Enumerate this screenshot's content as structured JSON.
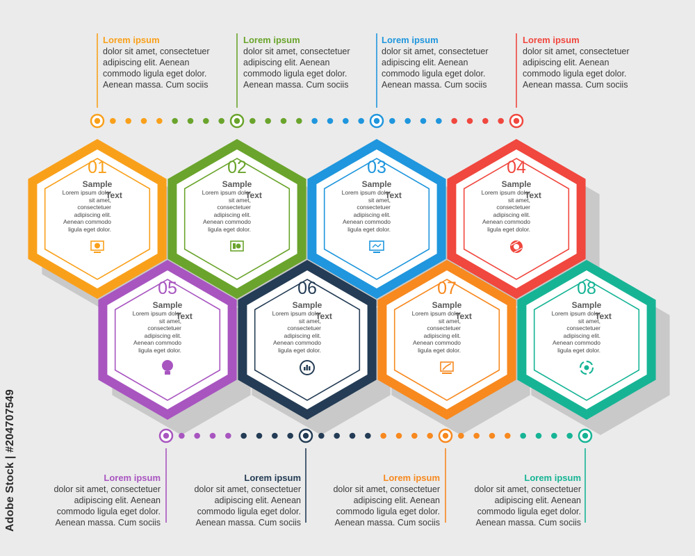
{
  "colors": {
    "background": "#ebebeb",
    "orange": "#f9a01b",
    "green": "#6aa42c",
    "blue": "#1f96dd",
    "red": "#f0473e",
    "purple": "#a855c0",
    "navy": "#243c55",
    "deep_orange": "#f7891f",
    "teal": "#16b495",
    "shadow": "#c9c9c9"
  },
  "top_callouts": [
    {
      "title": "Lorem ipsum",
      "body": "dolor sit amet, consectetuer\nadipiscing elit. Aenean\ncommodo ligula eget dolor.\nAenean massa. Cum sociis",
      "color": "#f9a01b"
    },
    {
      "title": "Lorem ipsum",
      "body": "dolor sit amet, consectetuer\nadipiscing elit. Aenean\ncommodo ligula eget dolor.\nAenean massa. Cum sociis",
      "color": "#6aa42c"
    },
    {
      "title": "Lorem ipsum",
      "body": "dolor sit amet, consectetuer\nadipiscing elit. Aenean\ncommodo ligula eget dolor.\nAenean massa. Cum sociis",
      "color": "#1f96dd"
    },
    {
      "title": "Lorem ipsum",
      "body": "dolor sit amet, consectetuer\nadipiscing elit. Aenean\ncommodo ligula eget dolor.\nAenean massa. Cum sociis",
      "color": "#f0473e"
    }
  ],
  "bottom_callouts": [
    {
      "title": "Lorem ipsum",
      "body": "dolor sit amet, consectetuer\nadipiscing elit. Aenean\ncommodo ligula eget dolor.\nAenean massa. Cum sociis",
      "color": "#a855c0"
    },
    {
      "title": "Lorem ipsum",
      "body": "dolor sit amet, consectetuer\nadipiscing elit. Aenean\ncommodo ligula eget dolor.\nAenean massa. Cum sociis",
      "color": "#243c55"
    },
    {
      "title": "Lorem ipsum",
      "body": "dolor sit amet, consectetuer\nadipiscing elit. Aenean\ncommodo ligula eget dolor.\nAenean massa. Cum sociis",
      "color": "#f7891f"
    },
    {
      "title": "Lorem ipsum",
      "body": "dolor sit amet, consectetuer\nadipiscing elit. Aenean\ncommodo ligula eget dolor.\nAenean massa. Cum sociis",
      "color": "#16b495"
    }
  ],
  "hexagons": [
    {
      "number": "01",
      "sample": "Sample",
      "text": "Text",
      "body": "Lorem ipsum dolor\nsit amet,\nconsectetuer\nadipiscing elit.\nAenean commodo\nligula eget dolor.",
      "color": "#f9a01b",
      "icon": "monitor-chart-icon"
    },
    {
      "number": "02",
      "sample": "Sample",
      "text": "Text",
      "body": "Lorem ipsum dolor\nsit amet,\nconsectetuer\nadipiscing elit.\nAenean commodo\nligula eget dolor.",
      "color": "#6aa42c",
      "icon": "presentation-board-icon"
    },
    {
      "number": "03",
      "sample": "Sample",
      "text": "Text",
      "body": "Lorem ipsum dolor\nsit amet,\nconsectetuer\nadipiscing elit.\nAenean commodo\nligula eget dolor.",
      "color": "#1f96dd",
      "icon": "computer-screen-icon"
    },
    {
      "number": "04",
      "sample": "Sample",
      "text": "Text",
      "body": "Lorem ipsum dolor\nsit amet,\nconsectetuer\nadipiscing elit.\nAenean commodo\nligula eget dolor.",
      "color": "#f0473e",
      "icon": "camera-aperture-icon"
    },
    {
      "number": "05",
      "sample": "Sample",
      "text": "Text",
      "body": "Lorem ipsum dolor\nsit amet,\nconsectetuer\nadipiscing elit.\nAenean commodo\nligula eget dolor.",
      "color": "#a855c0",
      "icon": "lightbulb-icon"
    },
    {
      "number": "06",
      "sample": "Sample",
      "text": "Text",
      "body": "Lorem ipsum dolor\nsit amet,\nconsectetuer\nadipiscing elit.\nAenean commodo\nligula eget dolor.",
      "color": "#243c55",
      "icon": "bar-chart-circle-icon"
    },
    {
      "number": "07",
      "sample": "Sample",
      "text": "Text",
      "body": "Lorem ipsum dolor\nsit amet,\nconsectetuer\nadipiscing elit.\nAenean commodo\nligula eget dolor.",
      "color": "#f7891f",
      "icon": "growth-board-icon"
    },
    {
      "number": "08",
      "sample": "Sample",
      "text": "Text",
      "body": "Lorem ipsum dolor\nsit amet,\nconsectetuer\nadipiscing elit.\nAenean commodo\nligula eget dolor.",
      "color": "#16b495",
      "icon": "recycle-arrows-icon"
    }
  ],
  "stock_id": "Adobe Stock | #204707549"
}
